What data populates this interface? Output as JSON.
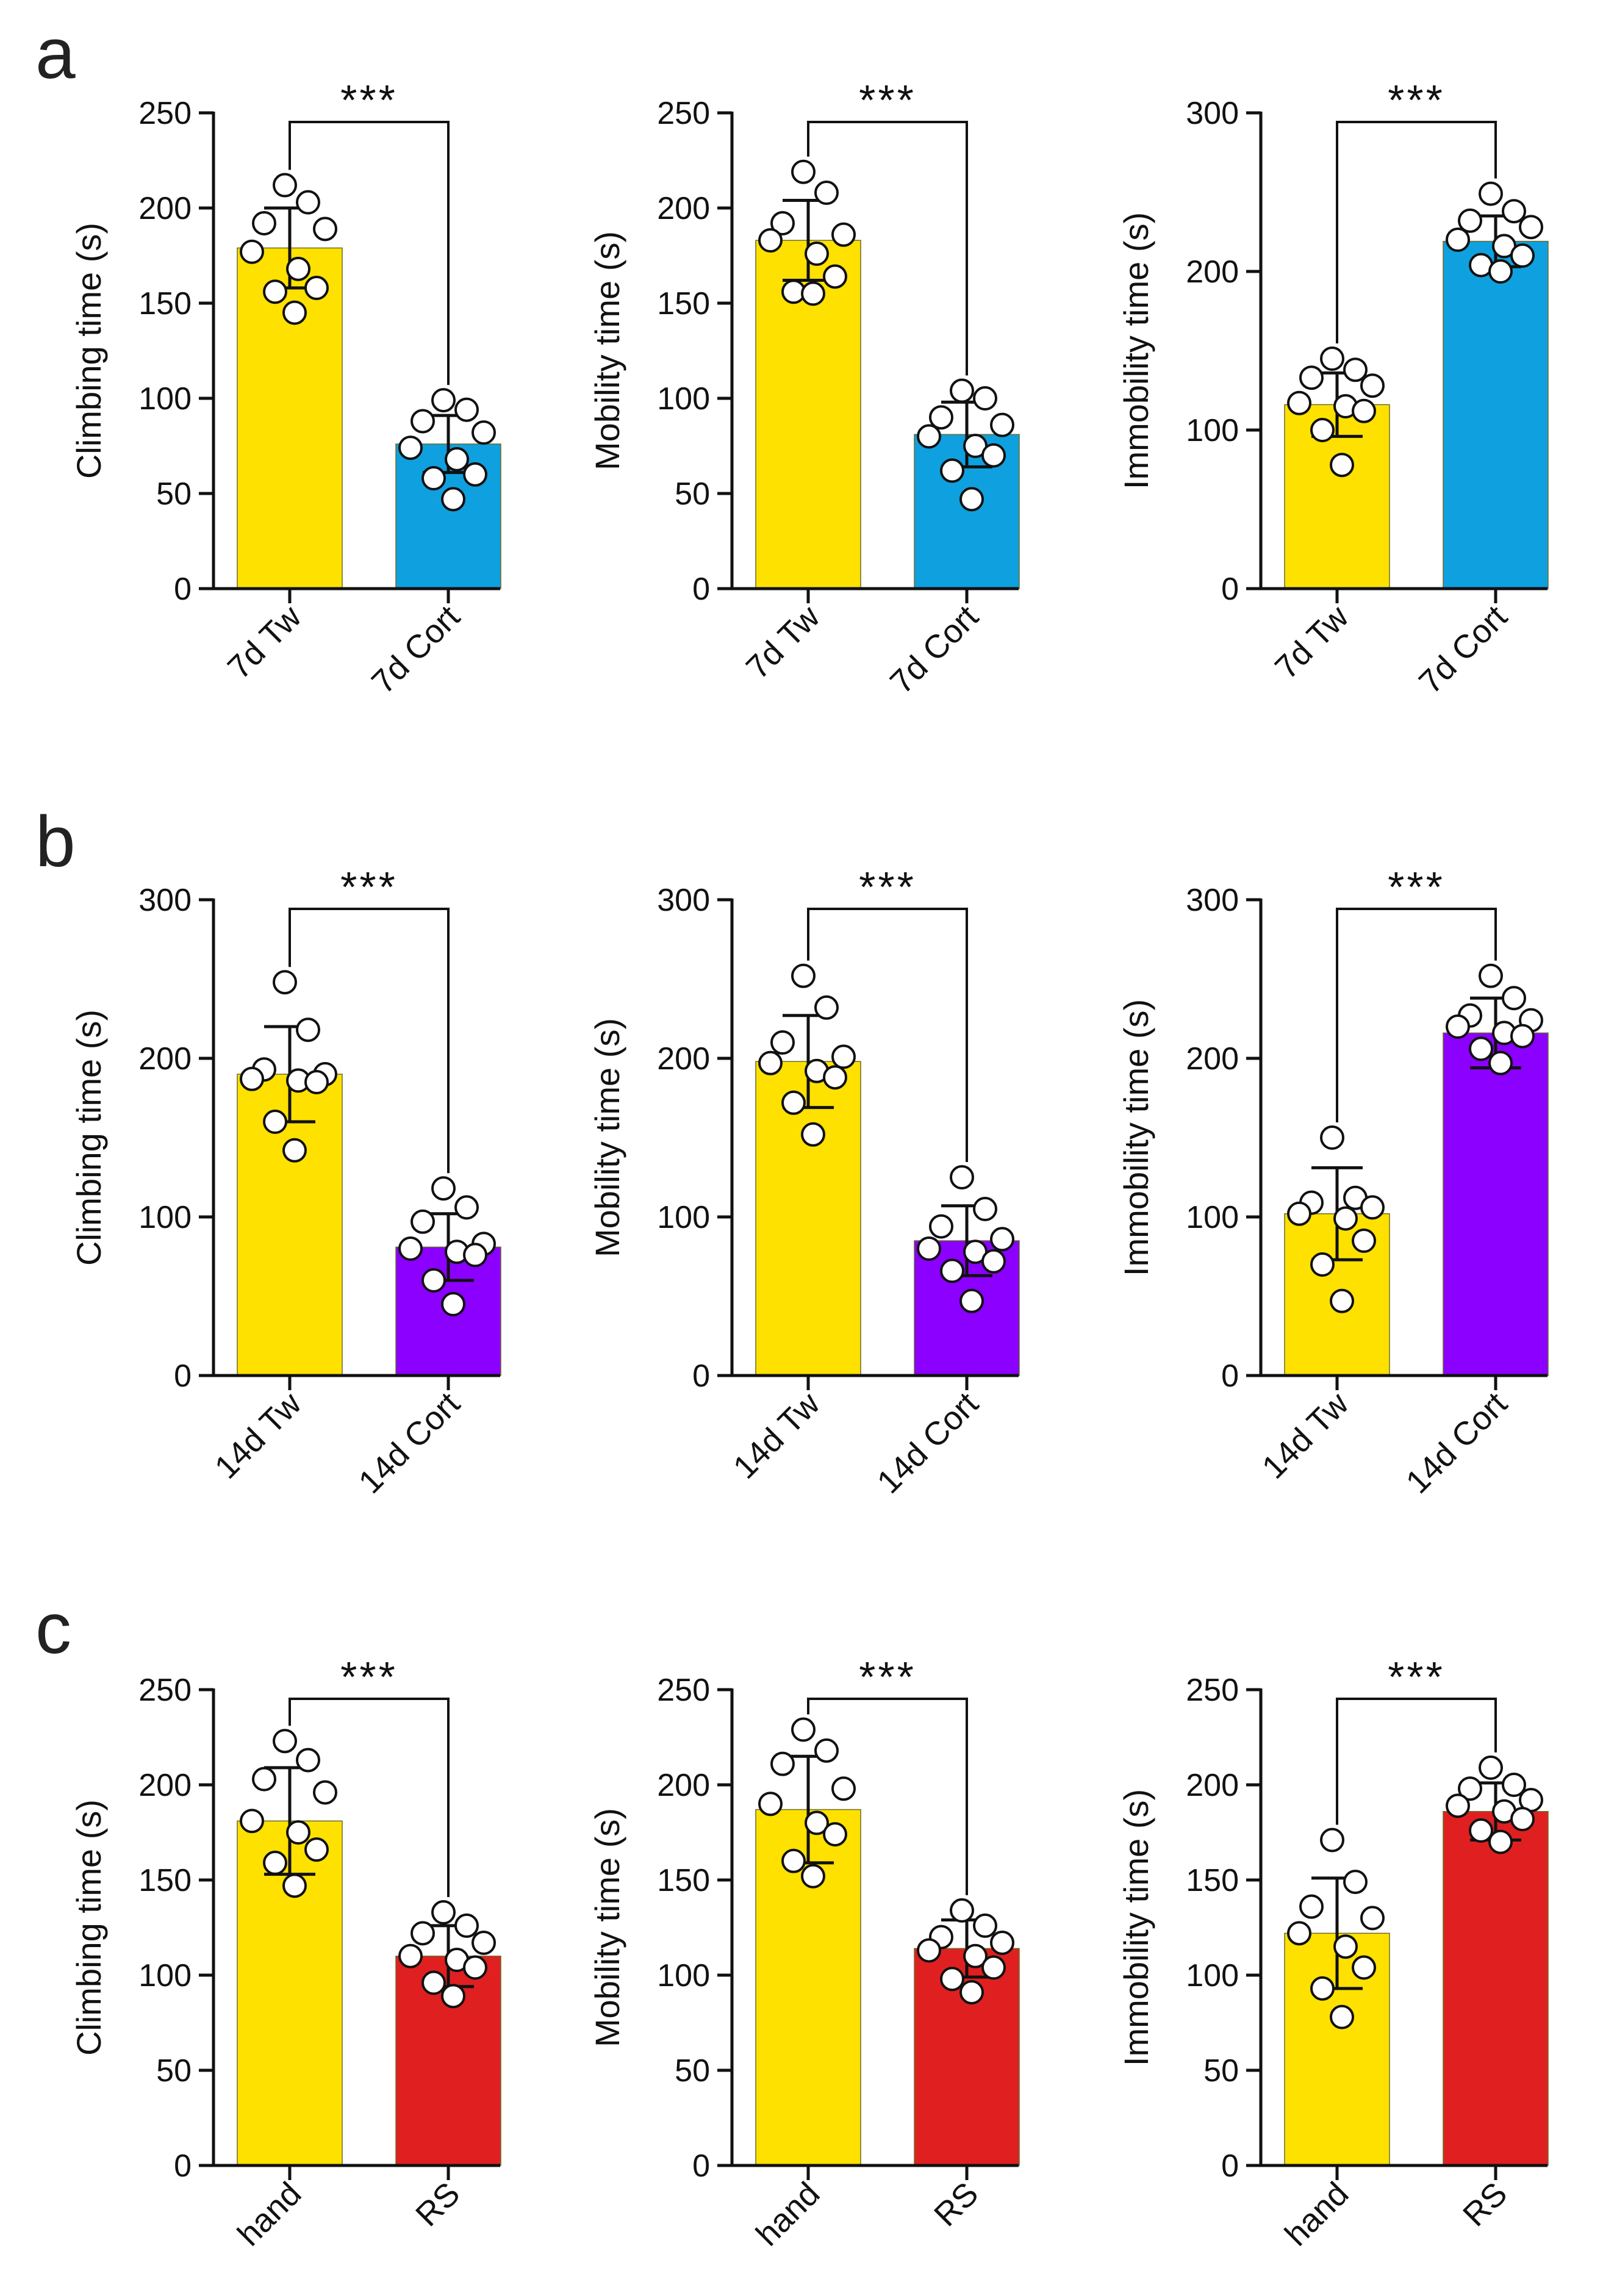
{
  "panel_labels": [
    "a",
    "b",
    "c"
  ],
  "colors": {
    "control": "#FFE100",
    "cort7": "#0FA0E0",
    "cort14": "#8B00FF",
    "rs": "#E02020",
    "axis": "#111111",
    "dot_fill": "#FFFFFF",
    "dot_stroke": "#111111"
  },
  "chart_data": [
    {
      "type": "bar",
      "panel": "a",
      "title": "",
      "xlabel": "",
      "ylabel": "Climbing time (s)",
      "ylim": [
        0,
        250
      ],
      "yticks": [
        0,
        50,
        100,
        150,
        200,
        250
      ],
      "ytick_labels": [
        "0",
        "50",
        "100",
        "150",
        "200",
        "250"
      ],
      "categories": [
        "7d Tw",
        "7d Cort"
      ],
      "color_keys": [
        "control",
        "cort7"
      ],
      "values": [
        179,
        76
      ],
      "sd": [
        21,
        15
      ],
      "significance": "***",
      "points": [
        [
          212,
          203,
          192,
          189,
          177,
          168,
          158,
          156,
          145
        ],
        [
          99,
          94,
          88,
          82,
          74,
          68,
          60,
          58,
          47
        ]
      ]
    },
    {
      "type": "bar",
      "panel": "a",
      "title": "",
      "xlabel": "",
      "ylabel": "Mobility time (s)",
      "ylim": [
        0,
        250
      ],
      "yticks": [
        0,
        50,
        100,
        150,
        200,
        250
      ],
      "ytick_labels": [
        "0",
        "50",
        "100",
        "150",
        "200",
        "250"
      ],
      "categories": [
        "7d Tw",
        "7d Cort"
      ],
      "color_keys": [
        "control",
        "cort7"
      ],
      "values": [
        183,
        81
      ],
      "sd": [
        21,
        17
      ],
      "significance": "***",
      "points": [
        [
          219,
          208,
          192,
          186,
          183,
          176,
          164,
          156,
          155
        ],
        [
          104,
          100,
          90,
          86,
          80,
          75,
          70,
          62,
          47
        ]
      ]
    },
    {
      "type": "bar",
      "panel": "a",
      "title": "",
      "xlabel": "",
      "ylabel": "Immobility time (s)",
      "ylim": [
        0,
        300
      ],
      "yticks": [
        0,
        100,
        200,
        300
      ],
      "ytick_labels": [
        "0",
        "100",
        "200",
        "300"
      ],
      "categories": [
        "7d Tw",
        "7d Cort"
      ],
      "color_keys": [
        "control",
        "cort7"
      ],
      "values": [
        116,
        219
      ],
      "sd": [
        20,
        16
      ],
      "significance": "***",
      "points": [
        [
          145,
          138,
          133,
          128,
          117,
          115,
          112,
          100,
          78
        ],
        [
          249,
          238,
          232,
          228,
          220,
          216,
          210,
          204,
          200
        ]
      ]
    },
    {
      "type": "bar",
      "panel": "b",
      "title": "",
      "xlabel": "",
      "ylabel": "Climbing time (s)",
      "ylim": [
        0,
        300
      ],
      "yticks": [
        0,
        100,
        200,
        300
      ],
      "ytick_labels": [
        "0",
        "100",
        "200",
        "300"
      ],
      "categories": [
        "14d Tw",
        "14d Cort"
      ],
      "color_keys": [
        "control",
        "cort14"
      ],
      "values": [
        190,
        81
      ],
      "sd": [
        30,
        21
      ],
      "significance": "***",
      "points": [
        [
          248,
          218,
          193,
          190,
          187,
          186,
          185,
          160,
          142
        ],
        [
          118,
          106,
          97,
          83,
          80,
          78,
          76,
          60,
          45
        ]
      ]
    },
    {
      "type": "bar",
      "panel": "b",
      "title": "",
      "xlabel": "",
      "ylabel": "Mobility time (s)",
      "ylim": [
        0,
        300
      ],
      "yticks": [
        0,
        100,
        200,
        300
      ],
      "ytick_labels": [
        "0",
        "100",
        "200",
        "300"
      ],
      "categories": [
        "14d Tw",
        "14d Cort"
      ],
      "color_keys": [
        "control",
        "cort14"
      ],
      "values": [
        198,
        85
      ],
      "sd": [
        29,
        22
      ],
      "significance": "***",
      "points": [
        [
          252,
          232,
          210,
          201,
          197,
          192,
          188,
          172,
          152
        ],
        [
          125,
          105,
          94,
          86,
          80,
          78,
          72,
          66,
          47
        ]
      ]
    },
    {
      "type": "bar",
      "panel": "b",
      "title": "",
      "xlabel": "",
      "ylabel": "Immobility time (s)",
      "ylim": [
        0,
        300
      ],
      "yticks": [
        0,
        100,
        200,
        300
      ],
      "ytick_labels": [
        "0",
        "100",
        "200",
        "300"
      ],
      "categories": [
        "14d Tw",
        "14d Cort"
      ],
      "color_keys": [
        "control",
        "cort14"
      ],
      "values": [
        102,
        216
      ],
      "sd": [
        29,
        22
      ],
      "significance": "***",
      "points": [
        [
          150,
          112,
          109,
          106,
          102,
          99,
          85,
          70,
          47
        ],
        [
          252,
          238,
          227,
          224,
          220,
          216,
          214,
          206,
          197
        ]
      ]
    },
    {
      "type": "bar",
      "panel": "c",
      "title": "",
      "xlabel": "",
      "ylabel": "Climbing time (s)",
      "ylim": [
        0,
        250
      ],
      "yticks": [
        0,
        50,
        100,
        150,
        200,
        250
      ],
      "ytick_labels": [
        "0",
        "50",
        "100",
        "150",
        "200",
        "250"
      ],
      "categories": [
        "hand",
        "RS"
      ],
      "color_keys": [
        "control",
        "rs"
      ],
      "values": [
        181,
        110
      ],
      "sd": [
        28,
        16
      ],
      "significance": "***",
      "points": [
        [
          223,
          213,
          203,
          196,
          181,
          175,
          166,
          159,
          147
        ],
        [
          133,
          126,
          122,
          117,
          110,
          108,
          104,
          96,
          89
        ]
      ]
    },
    {
      "type": "bar",
      "panel": "c",
      "title": "",
      "xlabel": "",
      "ylabel": "Mobility time (s)",
      "ylim": [
        0,
        250
      ],
      "yticks": [
        0,
        50,
        100,
        150,
        200,
        250
      ],
      "ytick_labels": [
        "0",
        "50",
        "100",
        "150",
        "200",
        "250"
      ],
      "categories": [
        "hand",
        "RS"
      ],
      "color_keys": [
        "control",
        "rs"
      ],
      "values": [
        187,
        114
      ],
      "sd": [
        28,
        15
      ],
      "significance": "***",
      "points": [
        [
          229,
          218,
          211,
          198,
          190,
          180,
          174,
          160,
          152
        ],
        [
          134,
          126,
          120,
          117,
          113,
          110,
          104,
          98,
          91
        ]
      ]
    },
    {
      "type": "bar",
      "panel": "c",
      "title": "",
      "xlabel": "",
      "ylabel": "Immobility time (s)",
      "ylim": [
        0,
        250
      ],
      "yticks": [
        0,
        50,
        100,
        150,
        200,
        250
      ],
      "ytick_labels": [
        "0",
        "50",
        "100",
        "150",
        "200",
        "250"
      ],
      "categories": [
        "hand",
        "RS"
      ],
      "color_keys": [
        "control",
        "rs"
      ],
      "values": [
        122,
        186
      ],
      "sd": [
        29,
        15
      ],
      "significance": "***",
      "points": [
        [
          171,
          149,
          136,
          130,
          122,
          115,
          104,
          93,
          78
        ],
        [
          209,
          200,
          198,
          192,
          189,
          186,
          182,
          176,
          170
        ]
      ]
    }
  ]
}
